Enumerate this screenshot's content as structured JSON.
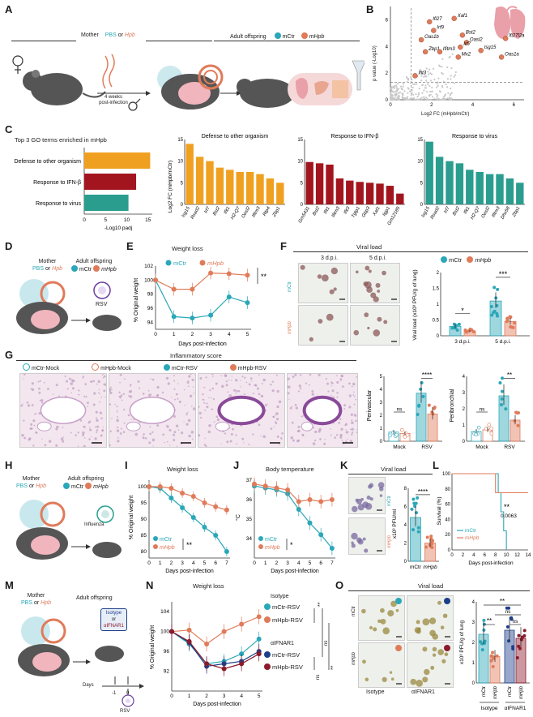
{
  "panels": {
    "A": "A",
    "B": "B",
    "C": "C",
    "D": "D",
    "E": "E",
    "F": "F",
    "G": "G",
    "H": "H",
    "I": "I",
    "J": "J",
    "K": "K",
    "L": "L",
    "M": "M",
    "N": "N",
    "O": "O"
  },
  "colors": {
    "mCtr": "#2aa7b8",
    "mHpb": "#e07b5a",
    "orange": "#f0a020",
    "darkred": "#a3151e",
    "teal": "#2a9d8f",
    "navy": "#1d3f8a",
    "maroon": "#8b1a2b"
  },
  "panelA": {
    "mother_label": "Mother",
    "pbs": "PBS",
    "or": "or",
    "hpb": "Hpb",
    "offspring_label": "Adult offspring",
    "mctr": "mCtr",
    "mhpb": "mHpb",
    "timing": "4 weeks",
    "timing2": "post-infection"
  },
  "panelB": {
    "ylabel": "p value (-Log10)",
    "xlabel": "Log2 FC (mHpb/mCtr)",
    "xticks": [
      "0",
      "2",
      "4",
      "6"
    ],
    "yticks": [
      "0",
      "2",
      "4",
      "6"
    ],
    "genes": [
      {
        "name": "Ifi27",
        "x": 1.9,
        "y": 5.85
      },
      {
        "name": "Xaf1",
        "x": 3.1,
        "y": 6.1
      },
      {
        "name": "Irf9",
        "x": 2.1,
        "y": 5.2
      },
      {
        "name": "Bst2",
        "x": 3.5,
        "y": 4.85
      },
      {
        "name": "Ifi27l2a",
        "x": 5.6,
        "y": 4.6
      },
      {
        "name": "Oas1b",
        "x": 1.5,
        "y": 4.5
      },
      {
        "name": "Oasl2",
        "x": 3.7,
        "y": 4.3
      },
      {
        "name": "Irf7",
        "x": 3.4,
        "y": 3.95
      },
      {
        "name": "Isg15",
        "x": 4.4,
        "y": 3.7
      },
      {
        "name": "Zbp1",
        "x": 1.7,
        "y": 3.6
      },
      {
        "name": "Ifitm3",
        "x": 2.4,
        "y": 3.6
      },
      {
        "name": "Mx2",
        "x": 3.3,
        "y": 3.2
      },
      {
        "name": "Oas1a",
        "x": 5.4,
        "y": 3.2
      },
      {
        "name": "Ifit3",
        "x": 1.2,
        "y": 1.8
      }
    ]
  },
  "panelC": {
    "title": "Top 3 GO terms enriched in mHpb",
    "terms": [
      "Defense to other organism",
      "Response to IFN-β",
      "Response to virus"
    ],
    "values": [
      15.5,
      12.2,
      10.4
    ],
    "xlabel": "-Log10 padj",
    "xticks": [
      "0",
      "5",
      "10",
      "15"
    ],
    "ylabel": "Log2 FC (mHpb/mCtr)",
    "sub": [
      {
        "title": "Defense to other organism",
        "genes": [
          "Isg15",
          "Rsad2",
          "Irf7",
          "Bst2",
          "Ifit1",
          "H2-Q7",
          "Oasl2",
          "Ifitm3",
          "Rtp4",
          "Zbp1"
        ],
        "values": [
          14,
          11,
          10,
          8.5,
          8,
          7.5,
          7.5,
          7,
          6,
          5
        ]
      },
      {
        "title": "Response to IFN-β",
        "genes": [
          "Gm5431",
          "Bst2",
          "Ifit1",
          "Ifitm3",
          "Ifit3",
          "Tgtp1",
          "Gbp3",
          "Xaf1",
          "Iigp1",
          "Gm12185"
        ],
        "values": [
          9.8,
          9.5,
          9.2,
          6,
          5.5,
          5.2,
          5,
          4.8,
          4.3,
          2.5
        ]
      },
      {
        "title": "Response to virus",
        "genes": [
          "Isg15",
          "Rsad2",
          "Irf7",
          "Bst2",
          "Ifit1",
          "H2-Q7",
          "Oasl2",
          "Ifitm3",
          "Dhx58",
          "Zbp1"
        ],
        "values": [
          14.5,
          11,
          10,
          9.5,
          8,
          7.5,
          7,
          7,
          6,
          5
        ]
      }
    ],
    "yticks": [
      "0",
      "5",
      "10",
      "15"
    ]
  },
  "panelD": {
    "mother_label": "Mother",
    "pbs": "PBS",
    "or": "or",
    "hpb": "Hpb",
    "offspring_label": "Adult offspring",
    "mctr": "mCtr",
    "mhpb": "mHpb",
    "virus": "RSV"
  },
  "panelE": {
    "title": "Weight loss",
    "ylabel": "% Original weight",
    "xlabel": "Days post-infection",
    "sig": "**",
    "legend_mctr": "mCtr",
    "legend_mhpb": "mHpb"
  },
  "panelF": {
    "title": "Viral load",
    "col1": "3 d.p.i.",
    "col2": "5 d.p.i.",
    "row1": "mCtr",
    "row2": "mHpb",
    "ylabel": "Viral load (x10³ PFU/g of lung)",
    "groups": [
      "3 d.p.i.",
      "5 d.p.i."
    ],
    "sig1": "*",
    "sig2": "***",
    "legend_mctr": "mCtr",
    "legend_mhpb": "mHpb"
  },
  "panelG": {
    "title": "Inflammatory score",
    "legend": [
      "mCtr-Mock",
      "mHpb-Mock",
      "mCtr-RSV",
      "mHpb-RSV"
    ],
    "peri_vasc": "Perivascular",
    "peri_bronch": "Peribronchial",
    "groups": [
      "Mock",
      "RSV"
    ],
    "sig_ns": "ns",
    "sig_vasc": "****",
    "sig_bronch": "**"
  },
  "panelH": {
    "mother_label": "Mother",
    "pbs": "PBS",
    "or": "or",
    "hpb": "Hpb",
    "offspring_label": "Adult offspring",
    "mctr": "mCtr",
    "mhpb": "mHpb",
    "virus": "Influenza"
  },
  "panelI": {
    "title": "Weight loss",
    "ylabel": "% Original weight",
    "xlabel": "Days post-infection",
    "sig": "**",
    "legend_mctr": "mCtr",
    "legend_mhpb": "mHpb"
  },
  "panelJ": {
    "title": "Body temperature",
    "ylabel": "°C",
    "xlabel": "Days post-infection",
    "sig": "*",
    "legend_mctr": "mCtr",
    "legend_mhpb": "mHpb"
  },
  "panelK": {
    "title": "Viral load",
    "ylabel": "x10³ PFU/ml",
    "sig": "****",
    "groups": [
      "mCtr",
      "mHpb"
    ],
    "row1": "mCtr",
    "row2": "mHpb"
  },
  "panelL": {
    "ylabel": "Survival (%)",
    "xlabel": "Days post-infection",
    "sig": "**",
    "p": "0.0063",
    "legend_mctr": "mCtr",
    "legend_mhpb": "mHpb"
  },
  "panelM": {
    "mother_label": "Mother",
    "pbs": "PBS",
    "or": "or",
    "hpb": "Hpb",
    "offspring_label": "Adult offspring",
    "isotype": "Isotype",
    "or2": "or",
    "afnar": "αIFNAR1",
    "days": "Days",
    "d1": "-1",
    "d0": "0",
    "virus": "RSV"
  },
  "panelN": {
    "title": "Weight loss",
    "ylabel": "% Original weight",
    "xlabel": "Days post-infection",
    "isotype": "Isotype",
    "afnar": "αIFNAR1",
    "legend": [
      "mCtr-RSV",
      "mHpb-RSV",
      "mCtr-RSV",
      "mHpb-RSV"
    ],
    "sig1": "**",
    "sig2": "**",
    "ns1": "ns",
    "ns2": "ns"
  },
  "panelO": {
    "title": "Viral load",
    "row1": "mCtr",
    "row2": "mHpb",
    "col1": "Isotype",
    "col2": "αIFNAR1",
    "ylabel": "x10³ PFU/g of lung",
    "groups": [
      "mCtr",
      "mHpb",
      "mCtr",
      "mHpb"
    ],
    "group_labels": [
      "Isotype",
      "αIFNAR1"
    ],
    "sig_a": "**",
    "sig_b": "ns",
    "sig_c": "**",
    "sig_d": "ns"
  },
  "chart_data": [
    {
      "id": "B",
      "type": "scatter",
      "xlabel": "Log2 FC (mHpb/mCtr)",
      "ylabel": "p value (-Log10)",
      "xlim": [
        0,
        6.5
      ],
      "ylim": [
        0,
        7
      ]
    },
    {
      "id": "C-main",
      "type": "bar",
      "categories": [
        "Defense to other organism",
        "Response to IFN-β",
        "Response to virus"
      ],
      "values": [
        15.5,
        12.2,
        10.4
      ],
      "xlabel": "-Log10 padj"
    },
    {
      "id": "E",
      "type": "line",
      "title": "Weight loss",
      "x": [
        0,
        1,
        2,
        3,
        4,
        5
      ],
      "series": [
        {
          "name": "mCtr",
          "values": [
            100,
            94.8,
            94.6,
            95.0,
            97.6,
            96.8
          ]
        },
        {
          "name": "mHpb",
          "values": [
            100,
            98.7,
            98.7,
            101.0,
            100.9,
            100.7
          ]
        }
      ],
      "ylim": [
        93,
        102
      ],
      "yticks": [
        94,
        96,
        98,
        100,
        102
      ]
    },
    {
      "id": "F-bar",
      "type": "bar",
      "categories": [
        "3 d.p.i.",
        "5 d.p.i."
      ],
      "series": [
        {
          "name": "mCtr",
          "values": [
            0.3,
            1.1
          ]
        },
        {
          "name": "mHpb",
          "values": [
            0.15,
            0.45
          ]
        }
      ],
      "ylim": [
        0,
        2.0
      ],
      "yticks": [
        0,
        0.5,
        1.0,
        1.5,
        2.0
      ]
    },
    {
      "id": "G-vasc",
      "type": "bar",
      "title": "Perivascular",
      "categories": [
        "Mock",
        "RSV"
      ],
      "series": [
        {
          "name": "mCtr",
          "values": [
            0.7,
            3.7
          ]
        },
        {
          "name": "mHpb",
          "values": [
            0.6,
            2.1
          ]
        }
      ],
      "ylim": [
        0,
        5
      ],
      "yticks": [
        0,
        1,
        2,
        3,
        4,
        5
      ]
    },
    {
      "id": "G-bronch",
      "type": "bar",
      "title": "Peribronchial",
      "categories": [
        "Mock",
        "RSV"
      ],
      "series": [
        {
          "name": "mCtr",
          "values": [
            0.6,
            2.8
          ]
        },
        {
          "name": "mHpb",
          "values": [
            0.7,
            1.3
          ]
        }
      ],
      "ylim": [
        0,
        4
      ],
      "yticks": [
        0,
        1,
        2,
        3,
        4
      ]
    },
    {
      "id": "I",
      "type": "line",
      "title": "Weight loss",
      "x": [
        0,
        1,
        2,
        3,
        4,
        5,
        6,
        7
      ],
      "series": [
        {
          "name": "mCtr",
          "values": [
            100,
            99.5,
            96.5,
            93.5,
            90.5,
            87.5,
            85,
            80
          ]
        },
        {
          "name": "mHpb",
          "values": [
            100,
            100,
            99.5,
            98,
            97,
            95,
            93.8,
            92.8
          ]
        }
      ],
      "ylim": [
        78,
        102
      ],
      "yticks": [
        80,
        85,
        90,
        95,
        100
      ]
    },
    {
      "id": "J",
      "type": "line",
      "title": "Body temperature",
      "x": [
        0,
        1,
        2,
        3,
        4,
        5,
        6,
        7
      ],
      "series": [
        {
          "name": "mCtr",
          "values": [
            36.7,
            36.6,
            36.5,
            36.3,
            35.5,
            34.8,
            34.2,
            33.5
          ]
        },
        {
          "name": "mHpb",
          "values": [
            36.8,
            36.7,
            36.6,
            36.5,
            35.9,
            36.0,
            35.9,
            36.0
          ]
        }
      ],
      "ylim": [
        33,
        37
      ],
      "yticks": [
        34,
        35,
        36,
        37
      ]
    },
    {
      "id": "K-bar",
      "type": "bar",
      "categories": [
        "mCtr",
        "mHpb"
      ],
      "values": [
        4.8,
        2.0
      ],
      "ylim": [
        0,
        8
      ],
      "yticks": [
        0,
        2,
        4,
        6,
        8
      ]
    },
    {
      "id": "L",
      "type": "line",
      "series": [
        {
          "name": "mCtr",
          "x": [
            0,
            8,
            8.5,
            9,
            9.5,
            10
          ],
          "values": [
            100,
            100,
            75,
            50,
            25,
            0
          ]
        },
        {
          "name": "mHpb",
          "x": [
            0,
            8,
            8,
            14
          ],
          "values": [
            100,
            100,
            75,
            75
          ]
        }
      ],
      "xticks": [
        0,
        2,
        4,
        6,
        8,
        10,
        12,
        14
      ],
      "yticks": [
        0,
        20,
        40,
        60,
        80,
        100
      ],
      "ylim": [
        0,
        100
      ]
    },
    {
      "id": "N",
      "type": "line",
      "title": "Weight loss",
      "x": [
        0,
        1,
        2,
        3,
        4,
        5
      ],
      "series": [
        {
          "name": "Isotype mCtr-RSV",
          "values": [
            100,
            97.5,
            93.5,
            94,
            95.5,
            98.5
          ]
        },
        {
          "name": "Isotype mHpb-RSV",
          "values": [
            100,
            100.3,
            97.5,
            100,
            101.5,
            103
          ]
        },
        {
          "name": "αIFNAR1 mCtr-RSV",
          "values": [
            100,
            97.8,
            93,
            93.5,
            94,
            96
          ]
        },
        {
          "name": "αIFNAR1 mHpb-RSV",
          "values": [
            100,
            98,
            93.5,
            92.5,
            93.5,
            95.5
          ]
        }
      ],
      "ylim": [
        88,
        106
      ],
      "yticks": [
        92,
        96,
        100,
        104
      ]
    },
    {
      "id": "O-bar",
      "type": "bar",
      "categories": [
        "Isotype mCtr",
        "Isotype mHpb",
        "αIFNAR1 mCtr",
        "αIFNAR1 mHpb"
      ],
      "values": [
        2.4,
        1.3,
        2.6,
        2.2
      ],
      "ylim": [
        0,
        4
      ],
      "yticks": [
        0,
        1,
        2,
        3,
        4
      ]
    }
  ]
}
